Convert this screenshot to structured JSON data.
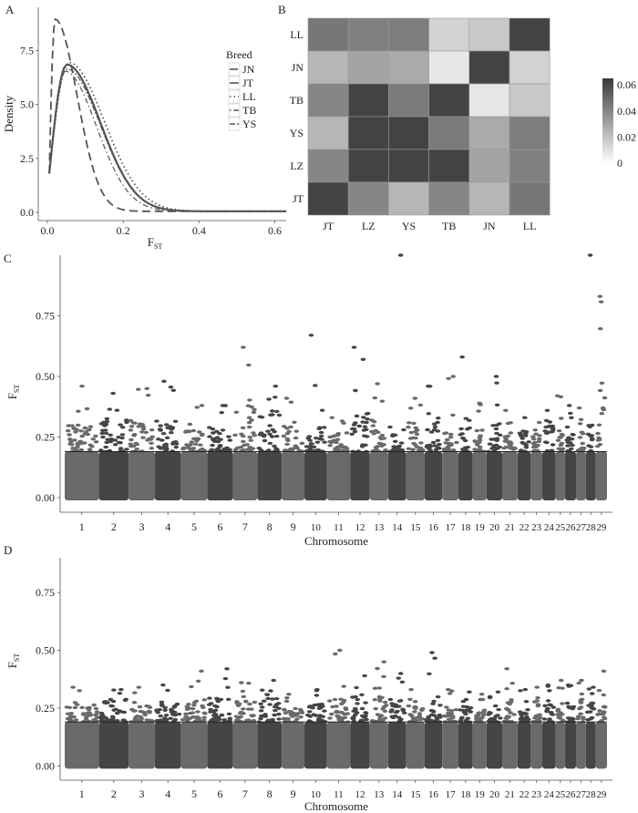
{
  "chart_data": [
    {
      "panel": "A",
      "type": "line",
      "xlabel": "F",
      "xlabel_sub": "ST",
      "ylabel": "Density",
      "xlim": [
        0,
        0.63
      ],
      "ylim": [
        0,
        9.5
      ],
      "xticks": [
        "0.0",
        "0.2",
        "0.4",
        "0.6"
      ],
      "xtick_values": [
        0,
        0.2,
        0.4,
        0.6
      ],
      "yticks": [
        "0.0",
        "2.5",
        "5.0",
        "7.5"
      ],
      "ytick_values": [
        0,
        2.5,
        5.0,
        7.5
      ],
      "legend_title": "Breed",
      "legend_position": "right",
      "series": [
        {
          "name": "JN",
          "style": "longdash",
          "mode": 0.02,
          "peak": 8.9,
          "tail": 0.055
        },
        {
          "name": "JT",
          "style": "solid",
          "mode": 0.05,
          "peak": 6.8,
          "tail": 0.085
        },
        {
          "name": "LL",
          "style": "dotted",
          "mode": 0.055,
          "peak": 6.9,
          "tail": 0.09
        },
        {
          "name": "TB",
          "style": "dotdash",
          "mode": 0.045,
          "peak": 6.5,
          "tail": 0.08
        },
        {
          "name": "YS",
          "style": "twodash",
          "mode": 0.05,
          "peak": 6.6,
          "tail": 0.085
        }
      ]
    },
    {
      "panel": "B",
      "type": "heatmap",
      "x_categories": [
        "JT",
        "LZ",
        "YS",
        "TB",
        "JN",
        "LL"
      ],
      "y_categories": [
        "LL",
        "JN",
        "TB",
        "YS",
        "LZ",
        "JT"
      ],
      "values": [
        [
          0.045,
          0.042,
          0.043,
          0.015,
          0.018,
          0.062
        ],
        [
          0.024,
          0.03,
          0.028,
          0.008,
          0.062,
          0.015
        ],
        [
          0.04,
          0.062,
          0.044,
          0.062,
          0.008,
          0.018
        ],
        [
          0.024,
          0.062,
          0.062,
          0.044,
          0.028,
          0.043
        ],
        [
          0.04,
          0.062,
          0.062,
          0.062,
          0.03,
          0.042
        ],
        [
          0.062,
          0.04,
          0.024,
          0.04,
          0.024,
          0.045
        ]
      ],
      "colorbar_ticks": [
        "0.06",
        "0.04",
        "0.02",
        "0"
      ],
      "colorbar_tick_values": [
        0.06,
        0.04,
        0.02,
        0
      ],
      "colorbar_range": [
        0,
        0.065
      ]
    },
    {
      "panel": "C",
      "type": "scatter",
      "xlabel": "Chromosome",
      "ylabel": "F",
      "ylabel_sub": "ST",
      "ylim": [
        -0.03,
        1.0
      ],
      "yticks": [
        "0.00",
        "0.25",
        "0.50",
        "0.75"
      ],
      "ytick_values": [
        0,
        0.25,
        0.5,
        0.75
      ],
      "threshold": 0.19,
      "chromosomes": [
        "1",
        "2",
        "3",
        "4",
        "5",
        "6",
        "7",
        "8",
        "9",
        "10",
        "11",
        "12",
        "13",
        "14",
        "15",
        "16",
        "17",
        "18",
        "19",
        "20",
        "21",
        "22",
        "23",
        "24",
        "25",
        "26",
        "27",
        "28",
        "29"
      ],
      "chrom_lengths": [
        158,
        137,
        121,
        121,
        121,
        119,
        112,
        113,
        105,
        104,
        107,
        91,
        84,
        84,
        85,
        81,
        75,
        66,
        64,
        72,
        71,
        61,
        53,
        62,
        43,
        51,
        45,
        46,
        52
      ],
      "chrom_max": [
        0.46,
        0.43,
        0.45,
        0.48,
        0.38,
        0.38,
        0.62,
        0.46,
        0.41,
        0.67,
        0.33,
        0.62,
        0.47,
        1.0,
        0.41,
        0.46,
        0.5,
        0.58,
        0.39,
        0.5,
        0.36,
        0.33,
        0.31,
        0.36,
        0.42,
        0.38,
        0.37,
        1.0,
        0.83
      ],
      "chrom_level": [
        0.3,
        0.33,
        0.32,
        0.32,
        0.28,
        0.29,
        0.38,
        0.36,
        0.3,
        0.29,
        0.28,
        0.36,
        0.32,
        0.3,
        0.31,
        0.33,
        0.27,
        0.3,
        0.28,
        0.31,
        0.27,
        0.27,
        0.26,
        0.3,
        0.3,
        0.3,
        0.29,
        0.32,
        0.55
      ]
    },
    {
      "panel": "D",
      "type": "scatter",
      "xlabel": "Chromosome",
      "ylabel": "F",
      "ylabel_sub": "ST",
      "ylim": [
        -0.03,
        0.9
      ],
      "yticks": [
        "0.00",
        "0.25",
        "0.50",
        "0.75"
      ],
      "ytick_values": [
        0,
        0.25,
        0.5,
        0.75
      ],
      "threshold": 0.19,
      "chromosomes": [
        "1",
        "2",
        "3",
        "4",
        "5",
        "6",
        "7",
        "8",
        "9",
        "10",
        "11",
        "12",
        "13",
        "14",
        "15",
        "16",
        "17",
        "18",
        "19",
        "20",
        "21",
        "22",
        "23",
        "24",
        "25",
        "26",
        "27",
        "28",
        "29"
      ],
      "chrom_lengths": [
        158,
        137,
        121,
        121,
        121,
        119,
        112,
        113,
        105,
        104,
        107,
        91,
        84,
        84,
        85,
        81,
        75,
        66,
        64,
        72,
        71,
        61,
        53,
        62,
        43,
        51,
        45,
        46,
        52
      ],
      "chrom_max": [
        0.34,
        0.33,
        0.34,
        0.35,
        0.41,
        0.42,
        0.36,
        0.37,
        0.31,
        0.33,
        0.5,
        0.39,
        0.45,
        0.4,
        0.33,
        0.49,
        0.33,
        0.32,
        0.31,
        0.32,
        0.42,
        0.33,
        0.34,
        0.35,
        0.37,
        0.35,
        0.37,
        0.34,
        0.41
      ],
      "chrom_level": [
        0.27,
        0.29,
        0.26,
        0.27,
        0.3,
        0.3,
        0.3,
        0.32,
        0.27,
        0.27,
        0.29,
        0.3,
        0.34,
        0.3,
        0.26,
        0.3,
        0.26,
        0.26,
        0.25,
        0.28,
        0.29,
        0.27,
        0.28,
        0.29,
        0.3,
        0.29,
        0.29,
        0.28,
        0.26
      ]
    }
  ],
  "panel_labels": [
    "A",
    "B",
    "C",
    "D"
  ]
}
